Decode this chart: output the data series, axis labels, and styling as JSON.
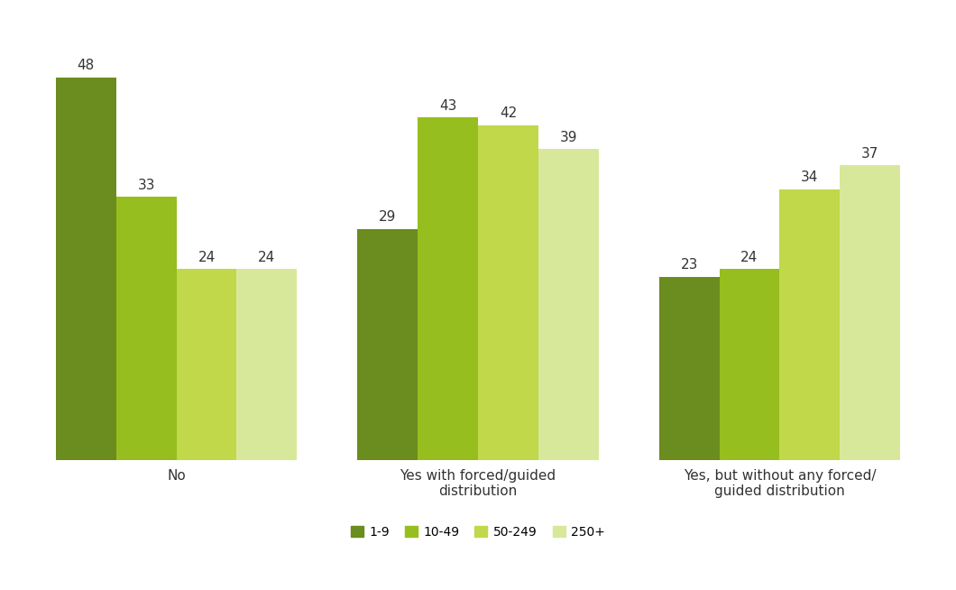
{
  "categories": [
    "No",
    "Yes with forced/guided\ndistribution",
    "Yes, but without any forced/\nguided distribution"
  ],
  "series": {
    "1-9": [
      48,
      29,
      23
    ],
    "10-49": [
      33,
      43,
      24
    ],
    "50-249": [
      24,
      42,
      34
    ],
    "250+": [
      24,
      39,
      37
    ]
  },
  "colors": {
    "1-9": "#6b8c1e",
    "10-49": "#96be1e",
    "50-249": "#c0d84a",
    "250+": "#d8e89a"
  },
  "legend_labels": [
    "1-9",
    "10-49",
    "50-249",
    "250+"
  ],
  "bar_width": 0.22,
  "ylim": [
    0,
    56
  ],
  "value_labels_fontsize": 11,
  "xlabel_fontsize": 11,
  "legend_fontsize": 10,
  "background_color": "#ffffff",
  "group_centers": [
    0.33,
    1.43,
    2.53
  ],
  "label_color": "#333333"
}
